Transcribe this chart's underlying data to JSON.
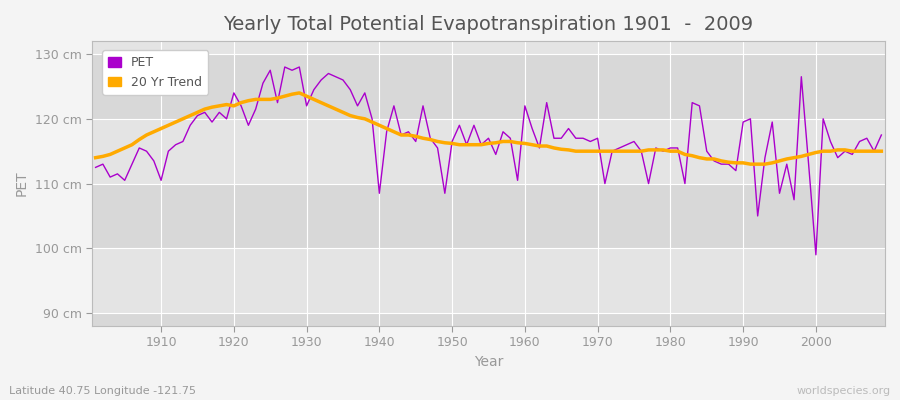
{
  "title": "Yearly Total Potential Evapotranspiration 1901  -  2009",
  "xlabel": "Year",
  "ylabel": "PET",
  "subtitle": "Latitude 40.75 Longitude -121.75",
  "watermark": "worldspecies.org",
  "years": [
    1901,
    1902,
    1903,
    1904,
    1905,
    1906,
    1907,
    1908,
    1909,
    1910,
    1911,
    1912,
    1913,
    1914,
    1915,
    1916,
    1917,
    1918,
    1919,
    1920,
    1921,
    1922,
    1923,
    1924,
    1925,
    1926,
    1927,
    1928,
    1929,
    1930,
    1931,
    1932,
    1933,
    1934,
    1935,
    1936,
    1937,
    1938,
    1939,
    1940,
    1941,
    1942,
    1943,
    1944,
    1945,
    1946,
    1947,
    1948,
    1949,
    1950,
    1951,
    1952,
    1953,
    1954,
    1955,
    1956,
    1957,
    1958,
    1959,
    1960,
    1961,
    1962,
    1963,
    1964,
    1965,
    1966,
    1967,
    1968,
    1969,
    1970,
    1971,
    1972,
    1973,
    1974,
    1975,
    1976,
    1977,
    1978,
    1979,
    1980,
    1981,
    1982,
    1983,
    1984,
    1985,
    1986,
    1987,
    1988,
    1989,
    1990,
    1991,
    1992,
    1993,
    1994,
    1995,
    1996,
    1997,
    1998,
    1999,
    2000,
    2001,
    2002,
    2003,
    2004,
    2005,
    2006,
    2007,
    2008,
    2009
  ],
  "pet": [
    112.5,
    113.0,
    111.0,
    111.5,
    110.5,
    113.0,
    115.5,
    115.0,
    113.5,
    110.5,
    115.0,
    116.0,
    116.5,
    119.0,
    120.5,
    121.0,
    119.5,
    121.0,
    120.0,
    124.0,
    122.0,
    119.0,
    121.5,
    125.5,
    127.5,
    122.5,
    128.0,
    127.5,
    128.0,
    122.0,
    124.5,
    126.0,
    127.0,
    126.5,
    126.0,
    124.5,
    122.0,
    124.0,
    120.0,
    108.5,
    118.0,
    122.0,
    117.5,
    118.0,
    116.5,
    122.0,
    117.0,
    115.5,
    108.5,
    116.5,
    119.0,
    116.0,
    119.0,
    116.0,
    117.0,
    114.5,
    118.0,
    117.0,
    110.5,
    122.0,
    118.5,
    115.5,
    122.5,
    117.0,
    117.0,
    118.5,
    117.0,
    117.0,
    116.5,
    117.0,
    110.0,
    115.0,
    115.5,
    116.0,
    116.5,
    115.0,
    110.0,
    115.5,
    115.0,
    115.5,
    115.5,
    110.0,
    122.5,
    122.0,
    115.0,
    113.5,
    113.0,
    113.0,
    112.0,
    119.5,
    120.0,
    105.0,
    114.0,
    119.5,
    108.5,
    113.0,
    107.5,
    126.5,
    113.0,
    99.0,
    120.0,
    116.5,
    114.0,
    115.0,
    114.5,
    116.5,
    117.0,
    115.0,
    117.5
  ],
  "trend": [
    114.0,
    114.2,
    114.5,
    115.0,
    115.5,
    116.0,
    116.8,
    117.5,
    118.0,
    118.5,
    119.0,
    119.5,
    120.0,
    120.5,
    121.0,
    121.5,
    121.8,
    122.0,
    122.2,
    122.0,
    122.5,
    122.8,
    123.0,
    123.0,
    123.0,
    123.2,
    123.5,
    123.8,
    124.0,
    123.5,
    123.0,
    122.5,
    122.0,
    121.5,
    121.0,
    120.5,
    120.2,
    120.0,
    119.5,
    119.0,
    118.5,
    118.0,
    117.5,
    117.5,
    117.3,
    117.0,
    116.8,
    116.5,
    116.3,
    116.2,
    116.0,
    116.0,
    116.0,
    116.0,
    116.2,
    116.3,
    116.5,
    116.5,
    116.3,
    116.2,
    116.0,
    115.8,
    115.8,
    115.5,
    115.3,
    115.2,
    115.0,
    115.0,
    115.0,
    115.0,
    115.0,
    115.0,
    115.0,
    115.0,
    115.0,
    115.0,
    115.2,
    115.2,
    115.2,
    115.0,
    115.0,
    114.5,
    114.3,
    114.0,
    113.8,
    113.8,
    113.5,
    113.3,
    113.2,
    113.2,
    113.0,
    113.0,
    113.0,
    113.2,
    113.5,
    113.8,
    114.0,
    114.2,
    114.5,
    114.8,
    115.0,
    115.0,
    115.2,
    115.2,
    115.0,
    115.0,
    115.0,
    115.0,
    115.0
  ],
  "pet_color": "#aa00cc",
  "trend_color": "#ffaa00",
  "fig_bg_color": "#f4f4f4",
  "plot_bg_color": "#e0e0e0",
  "plot_bg_band1": "#d8d8d8",
  "plot_bg_band2": "#e4e4e4",
  "grid_color": "#ffffff",
  "ylim": [
    88,
    132
  ],
  "yticks": [
    90,
    100,
    110,
    120,
    130
  ],
  "ytick_labels": [
    "90 cm",
    "100 cm",
    "110 cm",
    "120 cm",
    "130 cm"
  ],
  "xticks": [
    1910,
    1920,
    1930,
    1940,
    1950,
    1960,
    1970,
    1980,
    1990,
    2000
  ],
  "title_fontsize": 14,
  "axis_fontsize": 10,
  "tick_fontsize": 9,
  "legend_labels": [
    "PET",
    "20 Yr Trend"
  ],
  "legend_colors": [
    "#aa00cc",
    "#ffaa00"
  ],
  "tick_color": "#999999",
  "title_color": "#555555",
  "label_color": "#999999"
}
